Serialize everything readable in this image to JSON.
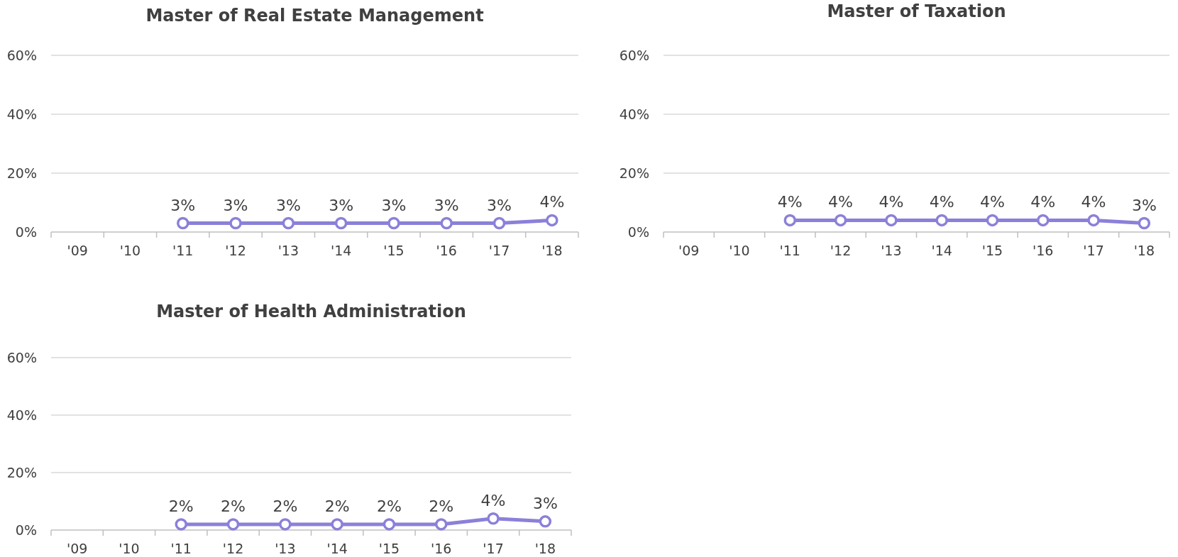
{
  "chart_data": [
    {
      "type": "line",
      "title": "Master of Real Estate Management",
      "categories": [
        "'09",
        "'10",
        "'11",
        "'12",
        "'13",
        "'14",
        "'15",
        "'16",
        "'17",
        "'18"
      ],
      "series": [
        {
          "color": "#8b80d9",
          "values": [
            null,
            null,
            3,
            3,
            3,
            3,
            3,
            3,
            3,
            4
          ],
          "value_labels": [
            null,
            null,
            "3%",
            "3%",
            "3%",
            "3%",
            "3%",
            "3%",
            "3%",
            "4%"
          ]
        }
      ],
      "ylim": [
        0,
        60
      ],
      "yticks": [
        {
          "value": 0,
          "label": "0%"
        },
        {
          "value": 20,
          "label": "20%"
        },
        {
          "value": 40,
          "label": "40%"
        },
        {
          "value": 60,
          "label": "60%"
        }
      ],
      "grid": "y",
      "marker": "circle"
    },
    {
      "type": "line",
      "title": "Master of Taxation",
      "categories": [
        "'09",
        "'10",
        "'11",
        "'12",
        "'13",
        "'14",
        "'15",
        "'16",
        "'17",
        "'18"
      ],
      "series": [
        {
          "color": "#8b80d9",
          "values": [
            null,
            null,
            4,
            4,
            4,
            4,
            4,
            4,
            4,
            3
          ],
          "value_labels": [
            null,
            null,
            "4%",
            "4%",
            "4%",
            "4%",
            "4%",
            "4%",
            "4%",
            "3%"
          ]
        }
      ],
      "ylim": [
        0,
        60
      ],
      "yticks": [
        {
          "value": 0,
          "label": "0%"
        },
        {
          "value": 20,
          "label": "20%"
        },
        {
          "value": 40,
          "label": "40%"
        },
        {
          "value": 60,
          "label": "60%"
        }
      ],
      "grid": "y",
      "marker": "circle"
    },
    {
      "type": "line",
      "title": "Master of Health Administration",
      "categories": [
        "'09",
        "'10",
        "'11",
        "'12",
        "'13",
        "'14",
        "'15",
        "'16",
        "'17",
        "'18"
      ],
      "series": [
        {
          "color": "#8b80d9",
          "values": [
            null,
            null,
            2,
            2,
            2,
            2,
            2,
            2,
            4,
            3
          ],
          "value_labels": [
            null,
            null,
            "2%",
            "2%",
            "2%",
            "2%",
            "2%",
            "2%",
            "4%",
            "3%"
          ]
        }
      ],
      "ylim": [
        0,
        60
      ],
      "yticks": [
        {
          "value": 0,
          "label": "0%"
        },
        {
          "value": 20,
          "label": "20%"
        },
        {
          "value": 40,
          "label": "40%"
        },
        {
          "value": 60,
          "label": "60%"
        }
      ],
      "grid": "y",
      "marker": "circle"
    }
  ]
}
